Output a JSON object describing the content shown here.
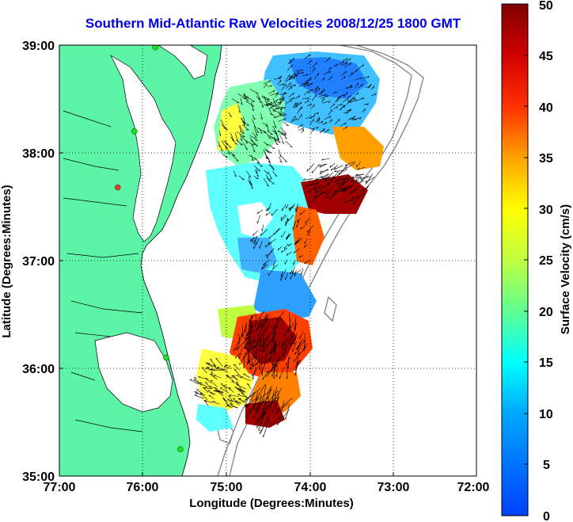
{
  "title": "Southern Mid-Atlantic Raw Velocities 2008/12/25 1800 GMT",
  "map": {
    "xlabel": "Longitude (Degrees:Minutes)",
    "ylabel": "Latitude (Degrees:Minutes)",
    "x_ticks": [
      "77:00",
      "76:00",
      "75:00",
      "74:00",
      "73:00",
      "72:00"
    ],
    "y_ticks": [
      "39:00",
      "38:00",
      "37:00",
      "36:00",
      "35:00"
    ],
    "lon_range": [
      -77,
      -72
    ],
    "lat_range": [
      35,
      39
    ],
    "grid": "dotted",
    "land_color": "#5cf5a8",
    "ocean_color": "#ffffff",
    "bathymetry_color": "#888888"
  },
  "colorbar": {
    "label": "Surface Velocity (cm/s)",
    "ticks": [
      "50",
      "45",
      "40",
      "35",
      "30",
      "25",
      "20",
      "15",
      "10",
      "5",
      "0"
    ],
    "range": [
      0,
      50
    ],
    "colormap": "jet"
  },
  "stations": [
    {
      "lon": -75.85,
      "lat": 38.98,
      "color": "#22dd22"
    },
    {
      "lon": -76.1,
      "lat": 38.2,
      "color": "#22dd22"
    },
    {
      "lon": -76.3,
      "lat": 37.68,
      "color": "#ff3333"
    },
    {
      "lon": -75.72,
      "lat": 36.1,
      "color": "#22dd22"
    },
    {
      "lon": -75.55,
      "lat": 35.25,
      "color": "#22dd22"
    }
  ]
}
